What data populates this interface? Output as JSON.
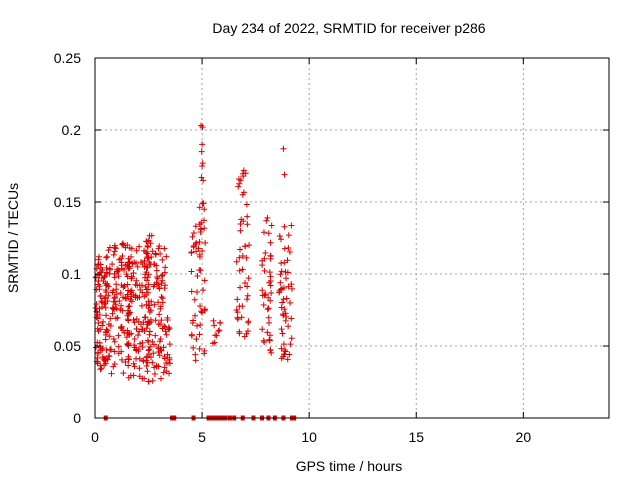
{
  "chart_data": {
    "type": "scatter",
    "title": "Day 234 of 2022, SRMTID for receiver p286",
    "xlabel": "GPS time / hours",
    "ylabel": "SRMTID / TECUs",
    "xlim": [
      0,
      24
    ],
    "ylim": [
      0,
      0.25
    ],
    "x_ticks": [
      0,
      5,
      10,
      15,
      20
    ],
    "x_tick_labels": [
      "0",
      "5",
      "10",
      "15",
      "20"
    ],
    "y_ticks": [
      0,
      0.05,
      0.1,
      0.15,
      0.2,
      0.25
    ],
    "y_tick_labels": [
      "0",
      "0.05",
      "0.1",
      "0.15",
      "0.2",
      "0.25"
    ],
    "grid": true,
    "marker": "plus",
    "color": "#dd0000",
    "series": [
      {
        "name": "SRMTID",
        "clusters": [
          {
            "x": [
              0.0,
              0.55
            ],
            "y": [
              0.03,
              0.113
            ],
            "n": 80
          },
          {
            "x": [
              0.5,
              1.6
            ],
            "y": [
              0.03,
              0.122
            ],
            "n": 120
          },
          {
            "x": [
              1.5,
              2.5
            ],
            "y": [
              0.025,
              0.123
            ],
            "n": 120
          },
          {
            "x": [
              2.4,
              3.35
            ],
            "y": [
              0.025,
              0.127
            ],
            "n": 110
          },
          {
            "x": [
              3.2,
              3.5
            ],
            "y": [
              0.03,
              0.07
            ],
            "n": 18
          },
          {
            "x": [
              4.5,
              5.15
            ],
            "y": [
              0.04,
              0.155
            ],
            "n": 55
          },
          {
            "x": [
              5.5,
              5.9
            ],
            "y": [
              0.048,
              0.068
            ],
            "n": 10
          },
          {
            "x": [
              6.6,
              7.2
            ],
            "y": [
              0.055,
              0.17
            ],
            "n": 45
          },
          {
            "x": [
              7.8,
              8.25
            ],
            "y": [
              0.04,
              0.14
            ],
            "n": 40
          },
          {
            "x": [
              8.6,
              9.2
            ],
            "y": [
              0.04,
              0.135
            ],
            "n": 50
          }
        ],
        "points": [
          [
            4.95,
            0.203
          ],
          [
            5.02,
            0.202
          ],
          [
            5.0,
            0.19
          ],
          [
            4.98,
            0.185
          ],
          [
            5.03,
            0.177
          ],
          [
            5.0,
            0.175
          ],
          [
            4.97,
            0.167
          ],
          [
            5.05,
            0.165
          ],
          [
            6.95,
            0.172
          ],
          [
            6.92,
            0.168
          ],
          [
            6.9,
            0.155
          ],
          [
            8.8,
            0.187
          ],
          [
            8.85,
            0.169
          ],
          [
            8.05,
            0.139
          ],
          [
            8.0,
            0.137
          ],
          [
            4.7,
            0.04
          ],
          [
            5.1,
            0.145
          ],
          [
            9.05,
            0.127
          ],
          [
            8.95,
            0.083
          ]
        ],
        "zero_points_x": [
          0.5,
          3.6,
          3.7,
          4.6,
          5.3,
          5.4,
          5.5,
          5.6,
          5.7,
          5.8,
          5.9,
          6.0,
          6.1,
          6.3,
          6.5,
          6.9,
          7.4,
          7.8,
          8.1,
          8.4,
          8.8,
          9.2,
          9.3
        ]
      }
    ]
  }
}
